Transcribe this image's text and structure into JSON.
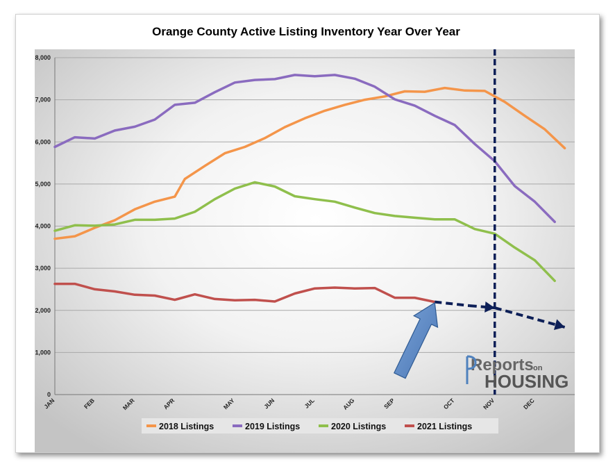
{
  "chart_data": {
    "type": "line",
    "title": "Orange County Active Listing Inventory Year Over Year",
    "xlabel": "",
    "ylabel": "",
    "ylim": [
      0,
      8000
    ],
    "yticks": [
      "0",
      "1,000",
      "2,000",
      "3,000",
      "4,000",
      "5,000",
      "6,000",
      "7,000",
      "8,000"
    ],
    "x_range": [
      0,
      52
    ],
    "month_ticks": [
      {
        "label": "JAN",
        "x": 0
      },
      {
        "label": "FEB",
        "x": 4
      },
      {
        "label": "MAR",
        "x": 8
      },
      {
        "label": "APR",
        "x": 12
      },
      {
        "label": "MAY",
        "x": 18
      },
      {
        "label": "JUN",
        "x": 22
      },
      {
        "label": "JUL",
        "x": 26
      },
      {
        "label": "AUG",
        "x": 30
      },
      {
        "label": "SEP",
        "x": 34
      },
      {
        "label": "OCT",
        "x": 40
      },
      {
        "label": "NOV",
        "x": 44
      },
      {
        "label": "DEC",
        "x": 48
      }
    ],
    "series": [
      {
        "name": "2018 Listings",
        "color": "#f4954a",
        "points": [
          [
            0,
            3700
          ],
          [
            2,
            3760
          ],
          [
            4,
            3960
          ],
          [
            6,
            4140
          ],
          [
            8,
            4400
          ],
          [
            10,
            4580
          ],
          [
            12,
            4700
          ],
          [
            13,
            5120
          ],
          [
            15,
            5430
          ],
          [
            17,
            5730
          ],
          [
            19,
            5880
          ],
          [
            21,
            6090
          ],
          [
            23,
            6350
          ],
          [
            25,
            6560
          ],
          [
            27,
            6740
          ],
          [
            29,
            6880
          ],
          [
            31,
            7000
          ],
          [
            33,
            7080
          ],
          [
            35,
            7200
          ],
          [
            37,
            7190
          ],
          [
            39,
            7280
          ],
          [
            41,
            7220
          ],
          [
            43,
            7210
          ],
          [
            45,
            6950
          ],
          [
            47,
            6620
          ],
          [
            49,
            6300
          ],
          [
            51,
            5850
          ]
        ]
      },
      {
        "name": "2019 Listings",
        "color": "#8a6bbf",
        "points": [
          [
            0,
            5880
          ],
          [
            2,
            6110
          ],
          [
            4,
            6080
          ],
          [
            6,
            6270
          ],
          [
            8,
            6360
          ],
          [
            10,
            6530
          ],
          [
            12,
            6880
          ],
          [
            14,
            6930
          ],
          [
            16,
            7180
          ],
          [
            18,
            7410
          ],
          [
            20,
            7470
          ],
          [
            22,
            7490
          ],
          [
            24,
            7590
          ],
          [
            26,
            7560
          ],
          [
            28,
            7590
          ],
          [
            30,
            7500
          ],
          [
            32,
            7310
          ],
          [
            34,
            7010
          ],
          [
            36,
            6860
          ],
          [
            38,
            6620
          ],
          [
            40,
            6400
          ],
          [
            42,
            5950
          ],
          [
            44,
            5540
          ],
          [
            46,
            4950
          ],
          [
            48,
            4580
          ],
          [
            50,
            4100
          ]
        ]
      },
      {
        "name": "2020 Listings",
        "color": "#8fbf4c",
        "points": [
          [
            0,
            3890
          ],
          [
            2,
            4020
          ],
          [
            4,
            4010
          ],
          [
            6,
            4040
          ],
          [
            8,
            4150
          ],
          [
            10,
            4150
          ],
          [
            12,
            4180
          ],
          [
            14,
            4340
          ],
          [
            16,
            4640
          ],
          [
            18,
            4890
          ],
          [
            20,
            5040
          ],
          [
            22,
            4940
          ],
          [
            24,
            4710
          ],
          [
            26,
            4640
          ],
          [
            28,
            4580
          ],
          [
            30,
            4440
          ],
          [
            32,
            4310
          ],
          [
            34,
            4240
          ],
          [
            36,
            4200
          ],
          [
            38,
            4160
          ],
          [
            40,
            4160
          ],
          [
            42,
            3930
          ],
          [
            44,
            3820
          ],
          [
            46,
            3490
          ],
          [
            48,
            3190
          ],
          [
            50,
            2700
          ]
        ]
      },
      {
        "name": "2021 Listings",
        "color": "#c0504d",
        "points": [
          [
            0,
            2630
          ],
          [
            2,
            2630
          ],
          [
            4,
            2500
          ],
          [
            6,
            2450
          ],
          [
            8,
            2370
          ],
          [
            10,
            2350
          ],
          [
            12,
            2250
          ],
          [
            14,
            2380
          ],
          [
            16,
            2270
          ],
          [
            18,
            2240
          ],
          [
            20,
            2250
          ],
          [
            22,
            2210
          ],
          [
            24,
            2400
          ],
          [
            26,
            2520
          ],
          [
            28,
            2540
          ],
          [
            30,
            2520
          ],
          [
            32,
            2530
          ],
          [
            34,
            2300
          ],
          [
            36,
            2300
          ],
          [
            38,
            2200
          ]
        ]
      }
    ],
    "projection": {
      "color": "#0d1f57",
      "points": [
        [
          38,
          2200
        ],
        [
          41.5,
          2110
        ],
        [
          44,
          2060
        ],
        [
          51,
          1600
        ]
      ]
    },
    "vertical_marker": {
      "x": 44,
      "color": "#0d1f57",
      "style": "dashed"
    },
    "annotation_arrow": {
      "color": "#4f81bd",
      "from": [
        34.5,
        450
      ],
      "to": [
        38,
        2180
      ]
    }
  },
  "legend": {
    "position": "bottom"
  },
  "logo": {
    "line1": "Reports",
    "on": "on",
    "line2": "HOUSING"
  }
}
